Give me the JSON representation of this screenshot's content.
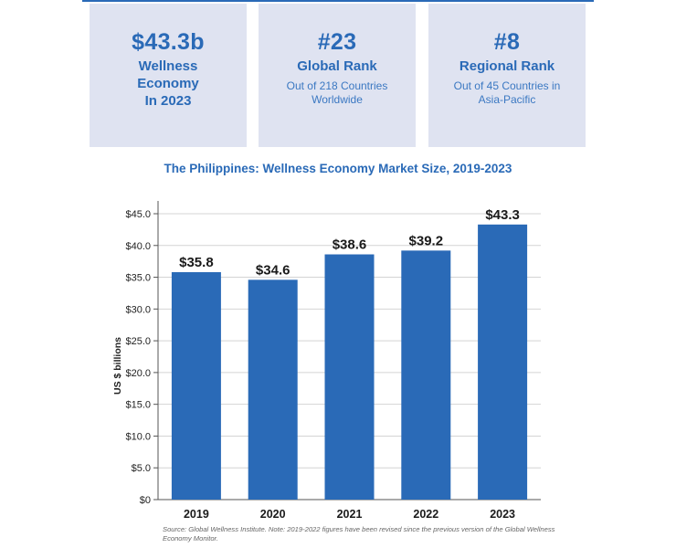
{
  "stats": [
    {
      "value": "$43.3b",
      "label": "Wellness\nEconomy\nIn 2023",
      "desc": ""
    },
    {
      "value": "#23",
      "label": "Global Rank",
      "desc": "Out of 218 Countries\nWorldwide"
    },
    {
      "value": "#8",
      "label": "Regional Rank",
      "desc": "Out of 45 Countries in\nAsia-Pacific"
    }
  ],
  "chart_data": {
    "type": "bar",
    "title": "The Philippines: Wellness Economy Market Size, 2019-2023",
    "xlabel": "",
    "ylabel": "US $ billions",
    "categories": [
      "2019",
      "2020",
      "2021",
      "2022",
      "2023"
    ],
    "values": [
      35.8,
      34.6,
      38.6,
      39.2,
      43.3
    ],
    "data_labels": [
      "$35.8",
      "$34.6",
      "$38.6",
      "$39.2",
      "$43.3"
    ],
    "ylim": [
      0,
      45
    ],
    "yticks": [
      0,
      5,
      10,
      15,
      20,
      25,
      30,
      35,
      40,
      45
    ],
    "ytick_labels": [
      "$0",
      "$5.0",
      "$10.0",
      "$15.0",
      "$20.0",
      "$25.0",
      "$30.0",
      "$35.0",
      "$40.0",
      "$45.0"
    ],
    "grid": true,
    "bar_color": "#2a6ab7",
    "grid_color": "#d4d4d4"
  },
  "source": "Source: Global Wellness Institute. Note: 2019-2022 figures have been revised since the previous version of the Global Wellness Economy Monitor."
}
